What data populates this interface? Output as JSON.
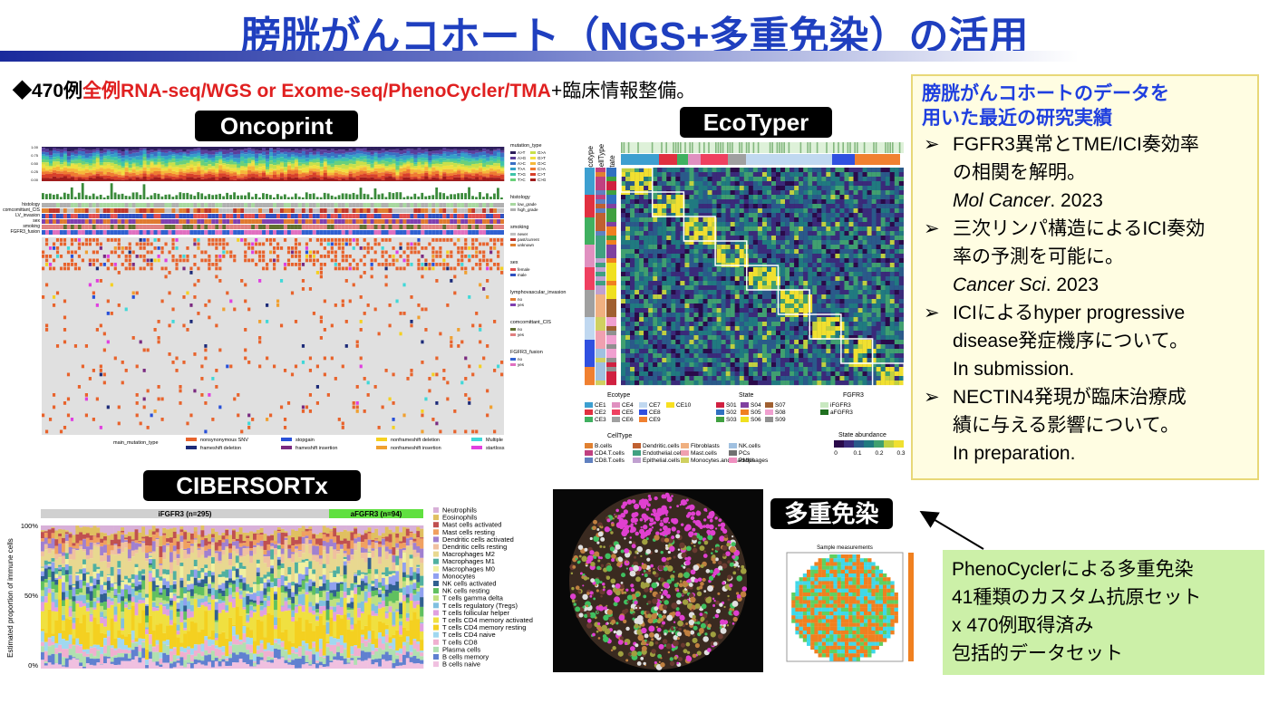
{
  "title": "膀胱がんコホート（NGS+多重免染）の活用",
  "summary": {
    "prefix": "◆470例",
    "highlight": "全例RNA-seq/WGS or Exome-seq/PhenoCycler/TMA",
    "suffix": "+臨床情報整備。"
  },
  "oncoprint": {
    "label": "Oncoprint",
    "yticks": [
      "1.00",
      "0.75",
      "0.50",
      "0.25",
      "0.00"
    ],
    "row_labels": [
      "histology",
      "comcomittant_CIS",
      "LV_invasion",
      "sex",
      "smoking",
      "FGFR3_fusion"
    ],
    "legend_groups": [
      {
        "title": "mutation_type",
        "items": [
          {
            "name": "A>T",
            "color": "#2d1e5c"
          },
          {
            "name": "A>G",
            "color": "#5a3d9a"
          },
          {
            "name": "A>C",
            "color": "#3a6fc4"
          },
          {
            "name": "T>A",
            "color": "#35a0c9"
          },
          {
            "name": "T>G",
            "color": "#3ec4a8"
          },
          {
            "name": "T>C",
            "color": "#6ad07a"
          },
          {
            "name": "G>A",
            "color": "#c8e04a"
          },
          {
            "name": "G>T",
            "color": "#f0e040"
          },
          {
            "name": "G>C",
            "color": "#f5b83a"
          },
          {
            "name": "C>A",
            "color": "#ef7a32"
          },
          {
            "name": "C>T",
            "color": "#d8402a"
          },
          {
            "name": "C>G",
            "color": "#a01c1c"
          }
        ]
      },
      {
        "title": "histology",
        "items": [
          {
            "name": "low_grade",
            "color": "#a8d8a0"
          },
          {
            "name": "high_grade",
            "color": "#b0b0b0"
          }
        ]
      },
      {
        "title": "smoking",
        "items": [
          {
            "name": "never",
            "color": "#c0c0c0"
          },
          {
            "name": "past/current",
            "color": "#c0392b"
          },
          {
            "name": "unknown",
            "color": "#e08030"
          }
        ]
      },
      {
        "title": "sex",
        "items": [
          {
            "name": "female",
            "color": "#e05050"
          },
          {
            "name": "male",
            "color": "#3050c0"
          }
        ]
      },
      {
        "title": "lymphovascular_invasion",
        "items": [
          {
            "name": "no",
            "color": "#e07a30"
          },
          {
            "name": "yes",
            "color": "#8040b0"
          }
        ]
      },
      {
        "title": "comcomittant_CIS",
        "items": [
          {
            "name": "no",
            "color": "#607030"
          },
          {
            "name": "yes",
            "color": "#e08080"
          }
        ]
      },
      {
        "title": "FGFR3_fusion",
        "items": [
          {
            "name": "no",
            "color": "#3060d0"
          },
          {
            "name": "yes",
            "color": "#e070c0"
          }
        ]
      }
    ],
    "bottom_legend_title": "main_mutation_type",
    "bottom_legend": [
      {
        "name": "nonsynonymous SNV",
        "color": "#e8632c"
      },
      {
        "name": "frameshift deletion",
        "color": "#1c2a78"
      },
      {
        "name": "stopgain",
        "color": "#2850d8"
      },
      {
        "name": "frameshift insertion",
        "color": "#7a2a80"
      },
      {
        "name": "nonframeshift deletion",
        "color": "#f5d020"
      },
      {
        "name": "nonframeshift insertion",
        "color": "#f0a030"
      },
      {
        "name": "Multiple",
        "color": "#40d8d8"
      },
      {
        "name": "startloss",
        "color": "#e040e0"
      }
    ]
  },
  "ecotyper": {
    "label": "EcoTyper",
    "axis_labels": [
      "Ecotype",
      "CellType",
      "State"
    ],
    "ecotype_title": "Ecotype",
    "ecotypes": [
      {
        "name": "CE1",
        "color": "#3d9fd0"
      },
      {
        "name": "CE2",
        "color": "#e03040"
      },
      {
        "name": "CE3",
        "color": "#40b060"
      },
      {
        "name": "CE4",
        "color": "#e090c0"
      },
      {
        "name": "CE5",
        "color": "#ef4060"
      },
      {
        "name": "CE6",
        "color": "#a0a0a0"
      },
      {
        "name": "CE7",
        "color": "#c0d8f0"
      },
      {
        "name": "CE8",
        "color": "#3050e0"
      },
      {
        "name": "CE9",
        "color": "#f08030"
      },
      {
        "name": "CE10",
        "color": "#f8e020"
      }
    ],
    "state_title": "State",
    "states": [
      {
        "name": "S01",
        "color": "#d02040"
      },
      {
        "name": "S02",
        "color": "#3070c0"
      },
      {
        "name": "S03",
        "color": "#40a040"
      },
      {
        "name": "S04",
        "color": "#8040a0"
      },
      {
        "name": "S05",
        "color": "#f08020"
      },
      {
        "name": "S06",
        "color": "#f0e020"
      },
      {
        "name": "S07",
        "color": "#a06030"
      },
      {
        "name": "S08",
        "color": "#f0a0d0"
      },
      {
        "name": "S09",
        "color": "#909090"
      }
    ],
    "fgfr3_title": "FGFR3",
    "fgfr3": [
      {
        "name": "iFGFR3",
        "color": "#c8e8c0"
      },
      {
        "name": "aFGFR3",
        "color": "#207020"
      }
    ],
    "celltype_title": "CellType",
    "celltypes": [
      {
        "name": "B.cells",
        "color": "#e08030"
      },
      {
        "name": "CD4.T.cells",
        "color": "#c04080"
      },
      {
        "name": "CD8.T.cells",
        "color": "#6080c0"
      },
      {
        "name": "Dendritic.cells",
        "color": "#c06030"
      },
      {
        "name": "Endothelial.cells",
        "color": "#40a080"
      },
      {
        "name": "Epithelial.cells",
        "color": "#c0a0d0"
      },
      {
        "name": "Fibroblasts",
        "color": "#f0b080"
      },
      {
        "name": "Mast.cells",
        "color": "#f0a0b0"
      },
      {
        "name": "Monocytes.and.Macrophages",
        "color": "#d0d060"
      },
      {
        "name": "NK.cells",
        "color": "#a0c0e0"
      },
      {
        "name": "PCs",
        "color": "#707070"
      },
      {
        "name": "PMNs",
        "color": "#f090c0"
      }
    ],
    "abundance_title": "State abundance",
    "abundance_ticks": [
      "0",
      "0.1",
      "0.2",
      "0.3"
    ]
  },
  "cibersortx": {
    "label": "CIBERSORTx",
    "groups": [
      "iFGFR3 (n=295)",
      "aFGFR3 (n=94)"
    ],
    "y_label": "Estimated proportion of immune cells",
    "yticks": [
      "100%",
      "50%",
      "0%"
    ],
    "legend": [
      {
        "name": "Neutrophils",
        "color": "#d8b0d8"
      },
      {
        "name": "Eosinophils",
        "color": "#e0c060"
      },
      {
        "name": "Mast cells activated",
        "color": "#c05050"
      },
      {
        "name": "Mast cells resting",
        "color": "#f0a060"
      },
      {
        "name": "Dendritic cells activated",
        "color": "#a080d0"
      },
      {
        "name": "Dendritic cells resting",
        "color": "#f0c0a0"
      },
      {
        "name": "Macrophages M2",
        "color": "#e8d890"
      },
      {
        "name": "Macrophages M1",
        "color": "#50b0a0"
      },
      {
        "name": "Macrophages M0",
        "color": "#f0f0a0"
      },
      {
        "name": "Monocytes",
        "color": "#90a0f0"
      },
      {
        "name": "NK cells activated",
        "color": "#306090"
      },
      {
        "name": "NK cells resting",
        "color": "#60c060"
      },
      {
        "name": "T cells gamma delta",
        "color": "#c0e080"
      },
      {
        "name": "T cells regulatory (Tregs)",
        "color": "#80c0e0"
      },
      {
        "name": "T cells follicular helper",
        "color": "#e0a0e0"
      },
      {
        "name": "T cells CD4 memory activated",
        "color": "#f0e040"
      },
      {
        "name": "T cells CD4 memory resting",
        "color": "#f4d020"
      },
      {
        "name": "T cells CD4 naive",
        "color": "#a0d8f0"
      },
      {
        "name": "T cells CD8",
        "color": "#f0b0d0"
      },
      {
        "name": "Plasma cells",
        "color": "#b0e0b0"
      },
      {
        "name": "B cells memory",
        "color": "#6080d0"
      },
      {
        "name": "B cells naive",
        "color": "#f0c0e0"
      }
    ]
  },
  "research": {
    "heading": [
      "膀胱がんコホートのデータを",
      "用いた最近の研究実績"
    ],
    "items": [
      {
        "lines": [
          "FGFR3異常とTME/ICI奏効率",
          "の相関を解明。"
        ],
        "journal": "Mol Cancer",
        "year": ". 2023"
      },
      {
        "lines": [
          "三次リンパ構造によるICI奏効",
          "率の予測を可能に。"
        ],
        "journal": "Cancer Sci",
        "year": ". 2023"
      },
      {
        "lines": [
          "ICIによるhyper progressive",
          "disease発症機序について。",
          "In submission."
        ]
      },
      {
        "lines": [
          "NECTIN4発現が臨床治療成",
          "績に与える影響について。",
          "In preparation."
        ]
      }
    ]
  },
  "multiplex": {
    "label": "多重免染",
    "plot_title": "Sample measurements",
    "lines": [
      "PhenoCyclerによる多重免染",
      "41種類のカスタム抗原セット",
      "x 470例取得済み",
      "包括的データセット"
    ]
  }
}
